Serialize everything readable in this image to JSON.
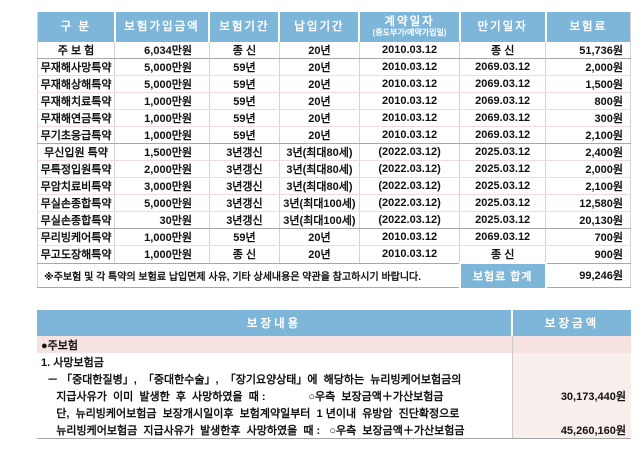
{
  "colors": {
    "header_blue": "#7db6d9",
    "pink_row": "#f6e3e1",
    "pink_col": "#f8eeec",
    "line_dark": "#a8a8a8",
    "line_light": "#f0dcda",
    "line_col": "#d4d4d4"
  },
  "premium_table": {
    "columns": [
      "구 분",
      "보험가입금액",
      "보험기간",
      "납입기간",
      "계약일자",
      "만기일자",
      "보험료"
    ],
    "contract_subheader": "(중도부가/예약가입일)",
    "rows": [
      {
        "name": "주 보 험",
        "amount": "6,034만원",
        "period": "종  신",
        "pay": "20년",
        "contract": "2010.03.12",
        "maturity": "종  신",
        "premium": "51,736원",
        "group_end": true
      },
      {
        "name": "무재해사망특약",
        "amount": "5,000만원",
        "period": "59년",
        "pay": "20년",
        "contract": "2010.03.12",
        "maturity": "2069.03.12",
        "premium": "2,000원"
      },
      {
        "name": "무재해상해특약",
        "amount": "5,000만원",
        "period": "59년",
        "pay": "20년",
        "contract": "2010.03.12",
        "maturity": "2069.03.12",
        "premium": "1,500원"
      },
      {
        "name": "무재해치료특약",
        "amount": "1,000만원",
        "period": "59년",
        "pay": "20년",
        "contract": "2010.03.12",
        "maturity": "2069.03.12",
        "premium": "800원"
      },
      {
        "name": "무재해연금특약",
        "amount": "1,000만원",
        "period": "59년",
        "pay": "20년",
        "contract": "2010.03.12",
        "maturity": "2069.03.12",
        "premium": "300원"
      },
      {
        "name": "무기초응급특약",
        "amount": "1,000만원",
        "period": "59년",
        "pay": "20년",
        "contract": "2010.03.12",
        "maturity": "2069.03.12",
        "premium": "2,100원",
        "group_end": true
      },
      {
        "name": "무신입원 특약",
        "amount": "1,500만원",
        "period": "3년갱신",
        "pay": "3년(최대80세)",
        "contract": "(2022.03.12)",
        "maturity": "2025.03.12",
        "premium": "2,400원"
      },
      {
        "name": "무특정입원특약",
        "amount": "2,000만원",
        "period": "3년갱신",
        "pay": "3년(최대80세)",
        "contract": "(2022.03.12)",
        "maturity": "2025.03.12",
        "premium": "2,000원"
      },
      {
        "name": "무암치료비특약",
        "amount": "3,000만원",
        "period": "3년갱신",
        "pay": "3년(최대80세)",
        "contract": "(2022.03.12)",
        "maturity": "2025.03.12",
        "premium": "2,100원"
      },
      {
        "name": "무실손종합특약",
        "amount": "5,000만원",
        "period": "3년갱신",
        "pay": "3년(최대100세)",
        "contract": "(2022.03.12)",
        "maturity": "2025.03.12",
        "premium": "12,580원"
      },
      {
        "name": "무실손종합특약",
        "amount": "30만원",
        "period": "3년갱신",
        "pay": "3년(최대100세)",
        "contract": "(2022.03.12)",
        "maturity": "2025.03.12",
        "premium": "20,130원",
        "group_end": true
      },
      {
        "name": "무리빙케어특약",
        "amount": "1,000만원",
        "period": "59년",
        "pay": "20년",
        "contract": "2010.03.12",
        "maturity": "2069.03.12",
        "premium": "700원"
      },
      {
        "name": "무고도장해특약",
        "amount": "1,000만원",
        "period": "종  신",
        "pay": "20년",
        "contract": "2010.03.12",
        "maturity": "종  신",
        "premium": "900원",
        "group_end": true
      }
    ],
    "footnote": "※주보험 및 각 특약의 보험료 납입면제 사유, 기타 상세내용은 약관을 참고하시기 바랍니다.",
    "total_label": "보험료 합계",
    "total_value": "99,246원"
  },
  "coverage_table": {
    "content_header": "보장내용",
    "amount_header": "보장금액",
    "rows": [
      {
        "text": "●주보험",
        "amount": "",
        "highlight": true
      },
      {
        "text": "1. 사망보험금",
        "amount": ""
      },
      {
        "text": "  － 「중대한질병」,  「중대한수술」,  「장기요양상태」에  해당하는  뉴리빙케어보험금의",
        "amount": ""
      },
      {
        "text": "     지급사유가  이미  발생한  후  사망하였을  때 :              ○우측  보장금액＋가산보험금",
        "amount": "30,173,440원"
      },
      {
        "text": "     단,  뉴리빙케어보험금  보장개시일이후  보험계약일부터  1 년이내  유방암  진단확정으로",
        "amount": ""
      },
      {
        "text": "     뉴리빙케어보험금  지급사유가  발생한후  사망하였을  때 :   ○우측  보장금액＋가산보험금",
        "amount": "45,260,160원"
      }
    ]
  }
}
